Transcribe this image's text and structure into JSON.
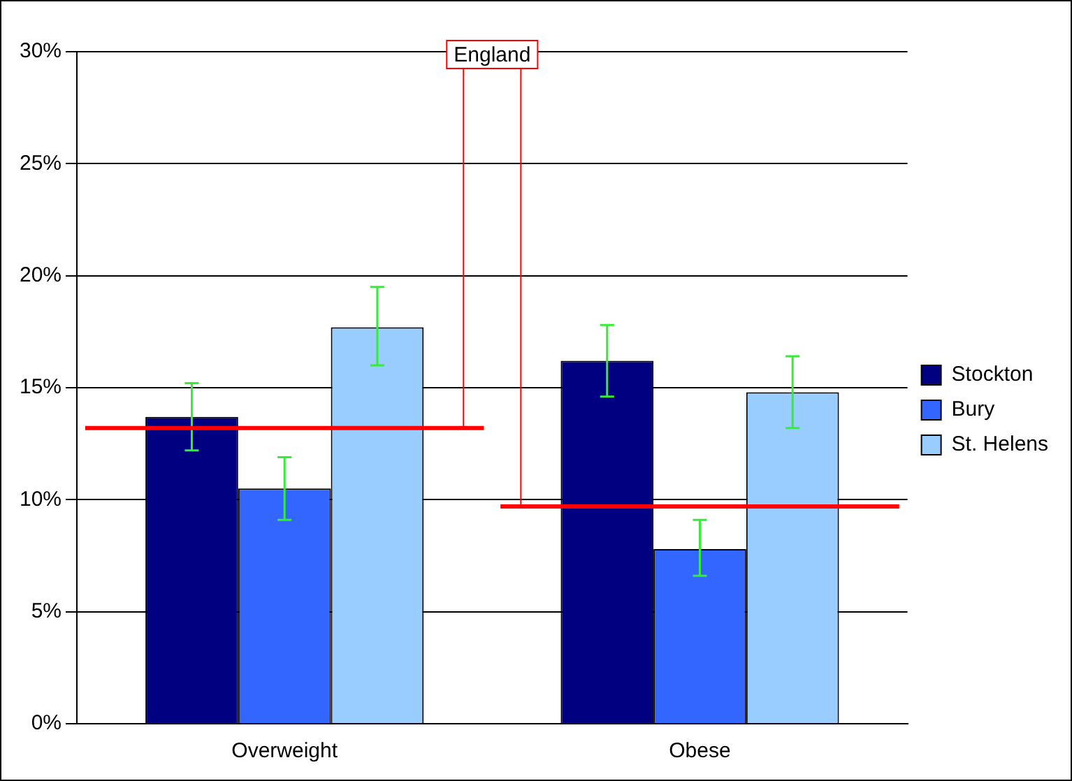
{
  "chart_data": {
    "type": "bar",
    "categories": [
      "Overweight",
      "Obese"
    ],
    "series": [
      {
        "name": "Stockton",
        "color": "#000080",
        "values": [
          13.7,
          16.2
        ],
        "errors": [
          [
            12.2,
            15.2
          ],
          [
            14.6,
            17.8
          ]
        ]
      },
      {
        "name": "Bury",
        "color": "#3366ff",
        "values": [
          10.5,
          7.8
        ],
        "errors": [
          [
            9.1,
            11.9
          ],
          [
            6.6,
            9.1
          ]
        ]
      },
      {
        "name": "St. Helens",
        "color": "#99ccff",
        "values": [
          17.7,
          14.8
        ],
        "errors": [
          [
            16.0,
            19.5
          ],
          [
            13.2,
            16.4
          ]
        ]
      }
    ],
    "ref_lines": [
      {
        "axis": "y",
        "value": 13.2,
        "label": "England",
        "color": "#ff0000"
      },
      {
        "axis": "y",
        "value": 9.7,
        "color": "#ff0000"
      }
    ],
    "ylim": [
      0,
      30
    ],
    "yticks": [
      {
        "value": 0,
        "label": "0%"
      },
      {
        "value": 5,
        "label": "5%"
      },
      {
        "value": 10,
        "label": "10%"
      },
      {
        "value": 15,
        "label": "15%"
      },
      {
        "value": 20,
        "label": "20%"
      },
      {
        "value": 25,
        "label": "25%"
      },
      {
        "value": 30,
        "label": "30%"
      }
    ],
    "grid": "y",
    "legend": "right"
  }
}
